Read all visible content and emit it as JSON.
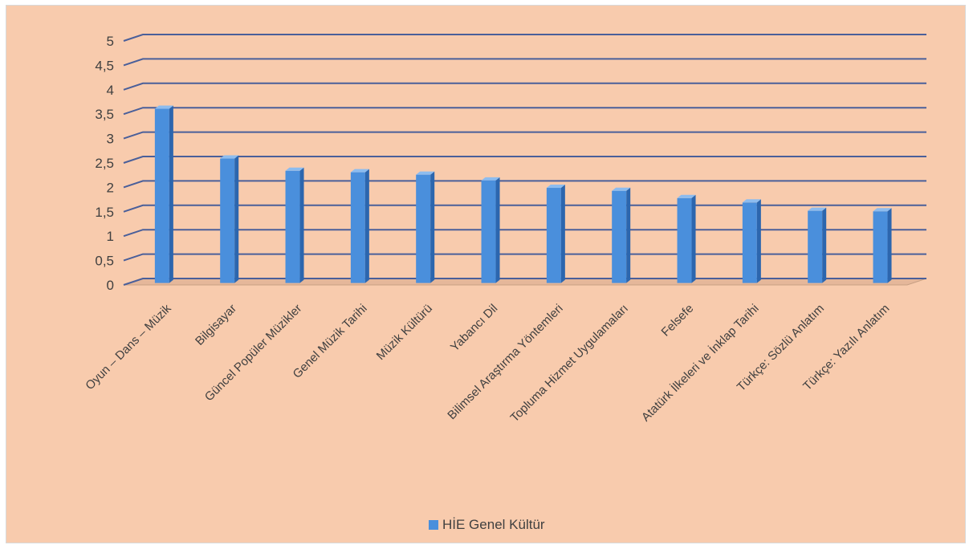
{
  "colors": {
    "background": "#f8cbad",
    "gridline": "#4a5f9a",
    "bar_front": "#4a8fdc",
    "bar_side": "#2c66ae",
    "bar_top": "#8dbcef",
    "text": "#404040"
  },
  "chart_data": {
    "type": "bar",
    "style": "3d-column",
    "grid": true,
    "legend_position": "bottom",
    "ylim": [
      0,
      5
    ],
    "yticks": [
      "0",
      "0,5",
      "1",
      "1,5",
      "2",
      "2,5",
      "3",
      "3,5",
      "4",
      "4,5",
      "5"
    ],
    "categories": [
      "Oyun – Dans – Müzik",
      "Bilgisayar",
      "Güncel Popüler Müzikler",
      "Genel Müzik Tarihi",
      "Müzik Kültürü",
      "Yabancı Dil",
      "Bilimsel Araştırma Yöntemleri",
      "Topluma Hizmet Uygulamaları",
      "Felsefe",
      "Atatürk İlkeleri ve İnklap Tarihi",
      "Türkçe: Sözlü Anlatım",
      "Türkçe: Yazılı Anlatım"
    ],
    "series": [
      {
        "name": "HİE Genel Kültür",
        "values": [
          3.57,
          2.55,
          2.3,
          2.27,
          2.22,
          2.1,
          1.95,
          1.89,
          1.74,
          1.65,
          1.48,
          1.47
        ]
      }
    ]
  }
}
